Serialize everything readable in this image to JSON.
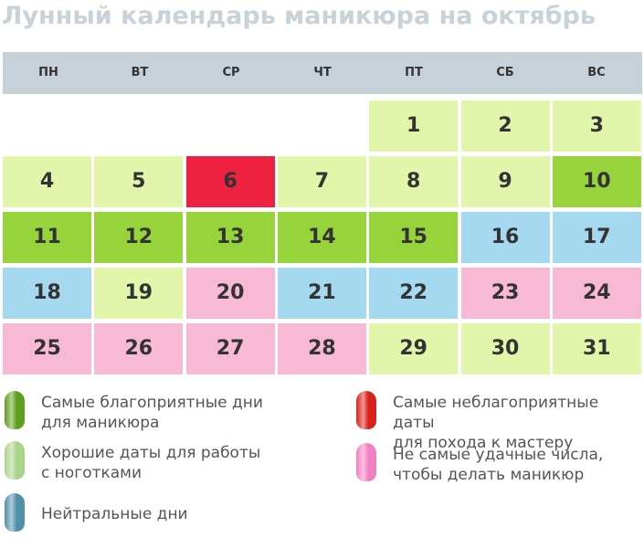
{
  "title": "Лунный календарь маникюра на октябрь",
  "calendar": {
    "weekdays": [
      "ПН",
      "ВТ",
      "СР",
      "ЧТ",
      "ПТ",
      "СБ",
      "ВС"
    ],
    "weeks": [
      [
        null,
        null,
        null,
        null,
        {
          "day": 1,
          "color": "#e1f5ab"
        },
        {
          "day": 2,
          "color": "#e1f5ab"
        },
        {
          "day": 3,
          "color": "#e1f5ab"
        }
      ],
      [
        {
          "day": 4,
          "color": "#e1f5ab"
        },
        {
          "day": 5,
          "color": "#e1f5ab"
        },
        {
          "day": 6,
          "color": "#ee2240"
        },
        {
          "day": 7,
          "color": "#e1f5ab"
        },
        {
          "day": 8,
          "color": "#e1f5ab"
        },
        {
          "day": 9,
          "color": "#e1f5ab"
        },
        {
          "day": 10,
          "color": "#97d43b"
        }
      ],
      [
        {
          "day": 11,
          "color": "#97d43b"
        },
        {
          "day": 12,
          "color": "#97d43b"
        },
        {
          "day": 13,
          "color": "#97d43b"
        },
        {
          "day": 14,
          "color": "#97d43b"
        },
        {
          "day": 15,
          "color": "#97d43b"
        },
        {
          "day": 16,
          "color": "#a4d9ef"
        },
        {
          "day": 17,
          "color": "#a4d9ef"
        }
      ],
      [
        {
          "day": 18,
          "color": "#a4d9ef"
        },
        {
          "day": 19,
          "color": "#e1f5ab"
        },
        {
          "day": 20,
          "color": "#f8b9d4"
        },
        {
          "day": 21,
          "color": "#a4d9ef"
        },
        {
          "day": 22,
          "color": "#a4d9ef"
        },
        {
          "day": 23,
          "color": "#f8b9d4"
        },
        {
          "day": 24,
          "color": "#f8b9d4"
        }
      ],
      [
        {
          "day": 25,
          "color": "#f8b9d4"
        },
        {
          "day": 26,
          "color": "#f8b9d4"
        },
        {
          "day": 27,
          "color": "#f8b9d4"
        },
        {
          "day": 28,
          "color": "#f8b9d4"
        },
        {
          "day": 29,
          "color": "#e1f5ab"
        },
        {
          "day": 30,
          "color": "#e1f5ab"
        },
        {
          "day": 31,
          "color": "#e1f5ab"
        }
      ]
    ]
  },
  "legend": [
    {
      "lines": [
        "Самые благоприятные дни",
        "для маникюра"
      ],
      "color": "#5f9e1e"
    },
    {
      "lines": [
        "Хорошие даты для работы",
        "с ноготками"
      ],
      "color": "#a9d48a"
    },
    {
      "lines": [
        "Нейтральные дни"
      ],
      "color": "#4f8fa8"
    },
    {
      "lines": [
        "Самые неблагоприятные даты",
        "для похода к мастеру"
      ],
      "color": "#d8211c"
    },
    {
      "lines": [
        "Не самые удачные числа,",
        "чтобы делать маникюр"
      ],
      "color": "#f27fc0"
    }
  ]
}
